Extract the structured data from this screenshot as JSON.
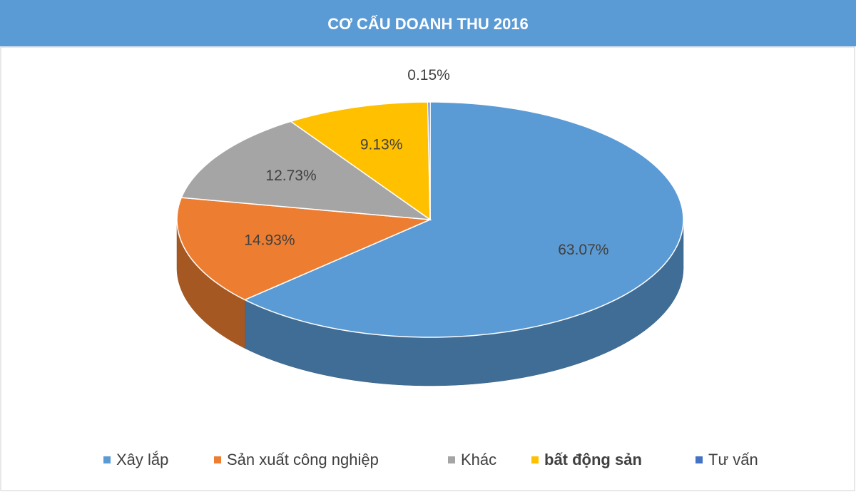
{
  "chart_data": {
    "type": "pie",
    "title": "CƠ CẤU DOANH THU 2016",
    "categories": [
      "Xây lắp",
      "Sản xuất công nghiệp",
      "Khác",
      "bất động sản",
      "Tư vấn"
    ],
    "values": [
      63.07,
      14.93,
      12.73,
      9.13,
      0.15
    ],
    "value_labels": [
      "63.07%",
      "14.93%",
      "12.73%",
      "9.13%",
      "0.15%"
    ],
    "colors": [
      "#5b9bd5",
      "#ed7d31",
      "#a5a5a5",
      "#ffc000",
      "#4472c4"
    ],
    "legend": "bottom"
  }
}
